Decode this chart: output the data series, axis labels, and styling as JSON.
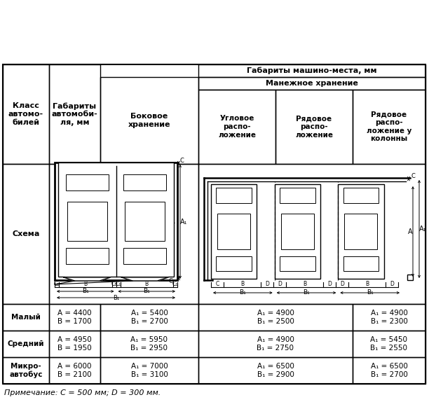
{
  "title_top": "Габариты машино-места, мм",
  "col_headers": {
    "klass": "Класс\nавтомо-\nбилей",
    "gabarity": "Габариты\nавтомоби-\nля, мм",
    "bokovoe": "Боковое\nхранение",
    "manezhnoe": "Манежное хранение",
    "uglovoe": "Угловое\nраспо-\nложение",
    "ryadovoe": "Рядовое\nраспо-\nложение",
    "ryadovoe_kol": "Рядовое\nраспо-\nложение у\nколонны"
  },
  "rows": [
    {
      "class": "Малый",
      "dims": "A = 4400\nB = 1700",
      "bokovoe": "A₁ = 5400\nB₁ = 2700",
      "uglovoe": "A₁ = 4900\nB₁ = 2500",
      "ryadovoe_kol": "A₁ = 4900\nB₁ = 2300"
    },
    {
      "class": "Средний",
      "dims": "A = 4950\nB = 1950",
      "bokovoe": "A₁ = 5950\nB₁ = 2950",
      "uglovoe": "A₁ = 4900\nB₁ = 2750",
      "ryadovoe_kol": "A₁ = 5450\nB₁ = 2550"
    },
    {
      "class": "Микро-\nавтобус",
      "dims": "A = 6000\nB = 2100",
      "bokovoe": "A₁ = 7000\nB₁ = 3100",
      "uglovoe": "A₁ = 6500\nB₁ = 2900",
      "ryadovoe_kol": "A₁ = 6500\nB₁ = 2700"
    }
  ],
  "note": "Примечание: C = 500 мм; D = 300 мм.",
  "bg_color": "#ffffff"
}
